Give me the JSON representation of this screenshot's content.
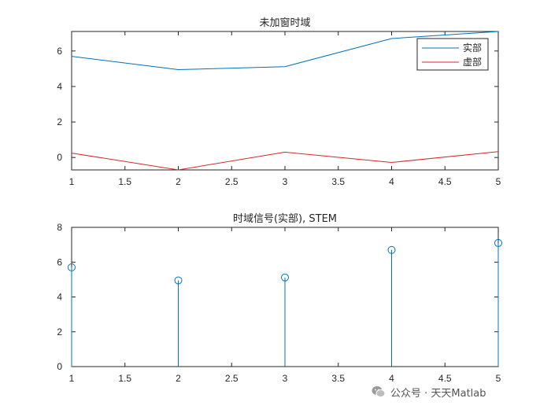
{
  "chart_data": [
    {
      "type": "line",
      "title": "未加窗时域",
      "x": [
        1,
        2,
        3,
        4,
        5
      ],
      "series": [
        {
          "name": "实部",
          "values": [
            5.7,
            4.95,
            5.12,
            6.7,
            7.1
          ],
          "color": "#0072bd"
        },
        {
          "name": "虚部",
          "values": [
            0.25,
            -0.7,
            0.3,
            -0.28,
            0.33
          ],
          "color": "#d62728"
        }
      ],
      "xlim": [
        1,
        5
      ],
      "ylim": [
        -0.7,
        7.1
      ],
      "xticks": [
        "1",
        "1.5",
        "2",
        "2.5",
        "3",
        "3.5",
        "4",
        "4.5",
        "5"
      ],
      "yticks": [
        "0",
        "2",
        "4",
        "6"
      ],
      "legend": "top-right",
      "grid": false
    },
    {
      "type": "stem",
      "title": "时域信号(实部), STEM",
      "x": [
        1,
        2,
        3,
        4,
        5
      ],
      "values": [
        5.7,
        4.95,
        5.12,
        6.7,
        7.1
      ],
      "color": "#0072bd",
      "xlim": [
        1,
        5
      ],
      "ylim": [
        0,
        8
      ],
      "xticks": [
        "1",
        "1.5",
        "2",
        "2.5",
        "3",
        "3.5",
        "4",
        "4.5",
        "5"
      ],
      "yticks": [
        "0",
        "2",
        "4",
        "6",
        "8"
      ],
      "grid": false
    }
  ],
  "watermark": {
    "text": "公众号 · 天天Matlab",
    "icon": "wechat-icon"
  }
}
